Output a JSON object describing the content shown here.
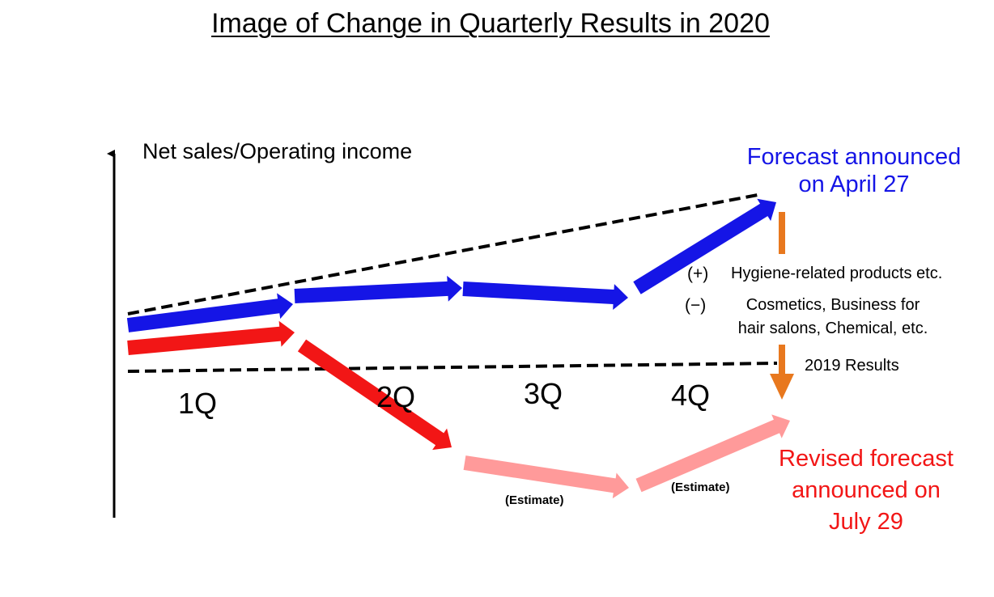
{
  "title": "Image of Change in Quarterly Results in 2020",
  "axis_label": "Net sales/Operating income",
  "quarters": [
    "1Q",
    "2Q",
    "3Q",
    "4Q"
  ],
  "forecast_april": {
    "line1": "Forecast announced",
    "line2": "on April 27",
    "color": "#1515e6"
  },
  "forecast_july": {
    "line1": "Revised forecast",
    "line2": "announced on",
    "line3": "July 29",
    "color": "#f21616",
    "estimate_color": "#ff9a9a"
  },
  "factors": {
    "plus_sign": "(+)",
    "plus_text": "Hygiene-related products etc.",
    "minus_sign": "(−)",
    "minus_line1": "Cosmetics, Business for",
    "minus_line2": "hair salons, Chemical, etc.",
    "arrow_color": "#e8781e"
  },
  "results_2019": "2019 Results",
  "estimate_label": "(Estimate)"
}
